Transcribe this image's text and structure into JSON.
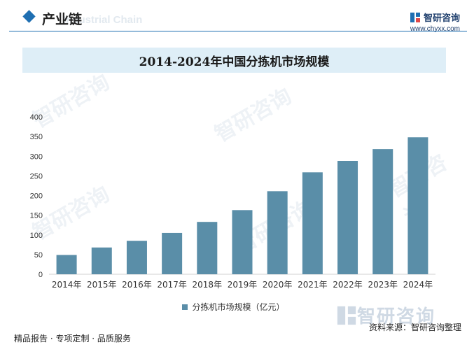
{
  "header": {
    "title": "产业链",
    "subtitle": "Industrial Chain",
    "brand_name": "智研咨询",
    "brand_url": "www.chyxx.com"
  },
  "footer": {
    "left_text": "精品报告 · 专项定制 · 品质服务",
    "source_text": "资料来源：智研咨询整理",
    "logo_text": "智研咨询"
  },
  "watermark_text": "智研咨询",
  "colors": {
    "bar": "#5a8ea8",
    "accent": "#1f6fb2",
    "title_bg": "#deeef7"
  },
  "chart_data": {
    "type": "bar",
    "title": "2014-2024年中国分拣机市场规模",
    "categories": [
      "2014年",
      "2015年",
      "2016年",
      "2017年",
      "2018年",
      "2019年",
      "2020年",
      "2021年",
      "2022年",
      "2023年",
      "2024年"
    ],
    "series": [
      {
        "name": "分拣机市场规模（亿元）",
        "values": [
          49,
          68,
          85,
          105,
          133,
          163,
          211,
          259,
          288,
          318,
          348
        ]
      }
    ],
    "ylim": [
      0,
      400
    ],
    "yticks": [
      0,
      50,
      100,
      150,
      200,
      250,
      300,
      350,
      400
    ],
    "grid": false,
    "legend_position": "bottom"
  }
}
